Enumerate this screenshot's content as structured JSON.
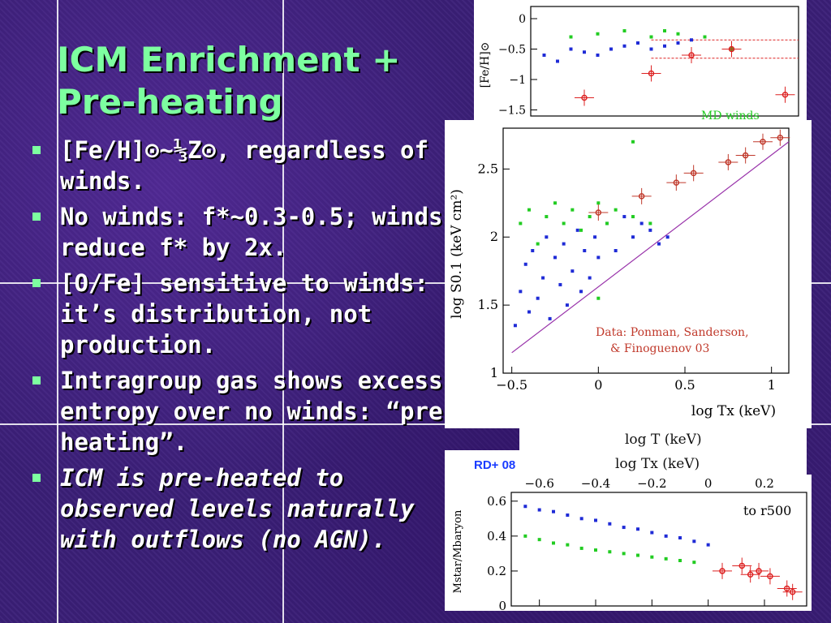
{
  "slide": {
    "title_line1": "ICM Enrichment +",
    "title_line2": "Pre-heating",
    "bullets": [
      {
        "text": "[Fe/H]⊙~⅓Z⊙, regardless of winds.",
        "italic": false
      },
      {
        "text": "No winds: f*~0.3-0.5; winds reduce f* by 2x.",
        "italic": false
      },
      {
        "text": "[O/Fe] sensitive to winds: it’s distribution, not production.",
        "italic": false
      },
      {
        "text": "Intragroup gas shows excess entropy over no winds: “pre-heating”.",
        "italic": false
      },
      {
        "text": "ICM is pre-heated to observed levels naturally with outflows (no AGN).",
        "italic": true
      }
    ],
    "caption_behind_1": "log T (keV)",
    "caption_behind_2": "log Tx (keV)",
    "rd_label": "RD+ 08"
  },
  "chart_data": [
    {
      "type": "scatter",
      "ylabel": "[Fe/H]⊙",
      "ylim": [
        -1.6,
        0.2
      ],
      "yticks": [
        "0",
        "-0.5",
        "-1",
        "-1.5"
      ],
      "annotation": "MD winds",
      "reference_lines_y": [
        -0.35,
        -0.65
      ],
      "series": [
        {
          "name": "",
          "color": "#1f2bd6",
          "points": [
            [
              -0.9,
              -0.6
            ],
            [
              -0.8,
              -0.7
            ],
            [
              -0.7,
              -0.5
            ],
            [
              -0.6,
              -0.55
            ],
            [
              -0.5,
              -0.6
            ],
            [
              -0.4,
              -0.5
            ],
            [
              -0.3,
              -0.45
            ],
            [
              -0.2,
              -0.4
            ],
            [
              -0.1,
              -0.5
            ],
            [
              0.0,
              -0.45
            ],
            [
              0.1,
              -0.4
            ],
            [
              0.2,
              -0.35
            ]
          ]
        },
        {
          "name": "",
          "color": "#22cc22",
          "points": [
            [
              -0.7,
              -0.3
            ],
            [
              -0.5,
              -0.25
            ],
            [
              -0.3,
              -0.2
            ],
            [
              -0.1,
              -0.3
            ],
            [
              0.0,
              -0.2
            ],
            [
              0.1,
              -0.25
            ],
            [
              0.3,
              -0.3
            ],
            [
              0.5,
              -0.5
            ]
          ]
        },
        {
          "name": "",
          "color": "#dd2222",
          "points": [
            [
              -0.6,
              -1.3
            ],
            [
              -0.1,
              -0.9
            ],
            [
              0.2,
              -0.6
            ],
            [
              0.5,
              -0.5
            ],
            [
              0.9,
              -1.25
            ]
          ]
        }
      ]
    },
    {
      "type": "scatter",
      "xlabel": "log Tx (keV)",
      "ylabel": "log S0.1 (keV cm²)",
      "xlim": [
        -0.55,
        1.1
      ],
      "ylim": [
        1,
        2.8
      ],
      "xticks": [
        "-0.5",
        "0",
        "0.5",
        "1"
      ],
      "yticks": [
        "1",
        "1.5",
        "2",
        "2.5"
      ],
      "annotation_line1": "Data: Ponman, Sanderson,",
      "annotation_line2": "& Finoguenov 03",
      "reference_line": [
        [
          -0.5,
          1.15
        ],
        [
          1.1,
          2.7
        ]
      ],
      "series": [
        {
          "name": "",
          "color": "#1f2bd6",
          "points": [
            [
              -0.48,
              1.35
            ],
            [
              -0.45,
              1.6
            ],
            [
              -0.42,
              1.8
            ],
            [
              -0.4,
              1.45
            ],
            [
              -0.38,
              1.9
            ],
            [
              -0.35,
              1.55
            ],
            [
              -0.32,
              1.7
            ],
            [
              -0.3,
              2.0
            ],
            [
              -0.28,
              1.4
            ],
            [
              -0.25,
              1.85
            ],
            [
              -0.22,
              1.65
            ],
            [
              -0.2,
              1.95
            ],
            [
              -0.18,
              1.5
            ],
            [
              -0.15,
              1.75
            ],
            [
              -0.12,
              2.05
            ],
            [
              -0.1,
              1.6
            ],
            [
              -0.08,
              1.9
            ],
            [
              -0.05,
              1.7
            ],
            [
              -0.02,
              2.0
            ],
            [
              0.0,
              1.85
            ],
            [
              0.05,
              2.1
            ],
            [
              0.1,
              1.9
            ],
            [
              0.15,
              2.15
            ],
            [
              0.2,
              2.0
            ],
            [
              0.25,
              2.1
            ],
            [
              0.3,
              2.05
            ],
            [
              0.35,
              1.95
            ],
            [
              0.4,
              2.0
            ]
          ]
        },
        {
          "name": "",
          "color": "#22cc22",
          "points": [
            [
              -0.45,
              2.1
            ],
            [
              -0.4,
              2.2
            ],
            [
              -0.35,
              1.95
            ],
            [
              -0.3,
              2.15
            ],
            [
              -0.25,
              2.25
            ],
            [
              -0.2,
              2.1
            ],
            [
              -0.15,
              2.2
            ],
            [
              -0.1,
              2.05
            ],
            [
              -0.05,
              2.15
            ],
            [
              0.0,
              2.25
            ],
            [
              0.05,
              2.1
            ],
            [
              0.1,
              2.2
            ],
            [
              0.2,
              2.15
            ],
            [
              0.3,
              2.1
            ],
            [
              0.0,
              1.55
            ],
            [
              0.2,
              2.7
            ]
          ]
        },
        {
          "name": "",
          "color": "#c0392b",
          "points": [
            [
              0.0,
              2.18
            ],
            [
              0.25,
              2.3
            ],
            [
              0.45,
              2.4
            ],
            [
              0.55,
              2.47
            ],
            [
              0.75,
              2.55
            ],
            [
              0.85,
              2.6
            ],
            [
              0.95,
              2.7
            ],
            [
              1.05,
              2.73
            ]
          ]
        }
      ]
    },
    {
      "type": "scatter",
      "ylabel": "Mstar/Mbaryon",
      "annotation": "to r500",
      "xlim": [
        -0.7,
        0.35
      ],
      "ylim": [
        0,
        0.65
      ],
      "xticks": [
        "-0.6",
        "-0.4",
        "-0.2",
        "0",
        "0.2"
      ],
      "yticks": [
        "0",
        "0.2",
        "0.4",
        "0.6"
      ],
      "series": [
        {
          "name": "",
          "color": "#1f2bd6",
          "points": [
            [
              -0.65,
              0.57
            ],
            [
              -0.6,
              0.55
            ],
            [
              -0.55,
              0.54
            ],
            [
              -0.5,
              0.52
            ],
            [
              -0.45,
              0.5
            ],
            [
              -0.4,
              0.49
            ],
            [
              -0.35,
              0.47
            ],
            [
              -0.3,
              0.45
            ],
            [
              -0.25,
              0.44
            ],
            [
              -0.2,
              0.42
            ],
            [
              -0.15,
              0.4
            ],
            [
              -0.1,
              0.39
            ],
            [
              -0.05,
              0.37
            ],
            [
              0.0,
              0.35
            ]
          ]
        },
        {
          "name": "",
          "color": "#22cc22",
          "points": [
            [
              -0.65,
              0.4
            ],
            [
              -0.6,
              0.38
            ],
            [
              -0.55,
              0.36
            ],
            [
              -0.5,
              0.35
            ],
            [
              -0.45,
              0.33
            ],
            [
              -0.4,
              0.32
            ],
            [
              -0.35,
              0.31
            ],
            [
              -0.3,
              0.3
            ],
            [
              -0.25,
              0.29
            ],
            [
              -0.2,
              0.28
            ],
            [
              -0.15,
              0.27
            ],
            [
              -0.1,
              0.26
            ],
            [
              -0.05,
              0.25
            ]
          ]
        },
        {
          "name": "",
          "color": "#dd2222",
          "points": [
            [
              0.05,
              0.2
            ],
            [
              0.12,
              0.23
            ],
            [
              0.15,
              0.18
            ],
            [
              0.18,
              0.2
            ],
            [
              0.22,
              0.17
            ],
            [
              0.28,
              0.1
            ],
            [
              0.3,
              0.08
            ]
          ]
        }
      ]
    }
  ]
}
